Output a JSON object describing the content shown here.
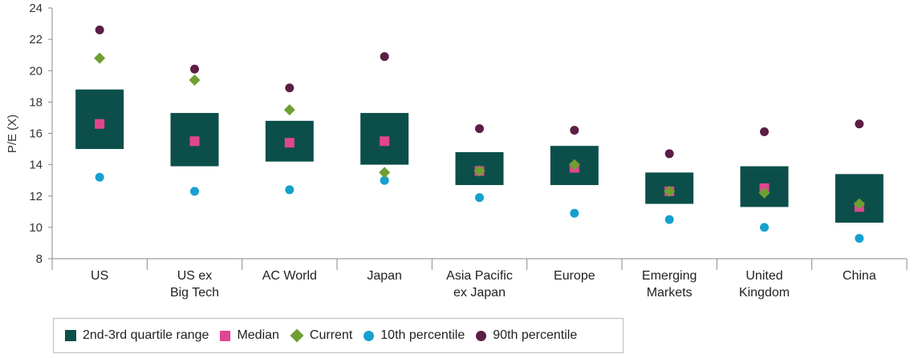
{
  "chart_data": {
    "type": "box",
    "title": "",
    "xlabel": "",
    "ylabel": "P/E (X)",
    "ylim": [
      8,
      24
    ],
    "yticks": [
      "8",
      "10",
      "12",
      "14",
      "16",
      "18",
      "20",
      "22",
      "24"
    ],
    "categories": [
      [
        "US"
      ],
      [
        "US ex",
        "Big Tech"
      ],
      [
        "AC World"
      ],
      [
        "Japan"
      ],
      [
        "Asia Pacific",
        "ex Japan"
      ],
      [
        "Europe"
      ],
      [
        "Emerging",
        "Markets"
      ],
      [
        "United",
        "Kingdom"
      ],
      [
        "China"
      ]
    ],
    "series": [
      {
        "name": "2nd-3rd quartile range",
        "key": "quartile",
        "color": "#0c4f4a",
        "low": [
          15.0,
          13.9,
          14.2,
          14.0,
          12.7,
          12.7,
          11.5,
          11.3,
          10.3
        ],
        "high": [
          18.8,
          17.3,
          16.8,
          17.3,
          14.8,
          15.2,
          13.5,
          13.9,
          13.4
        ]
      },
      {
        "name": "Median",
        "key": "median",
        "color": "#e2458f",
        "values": [
          16.6,
          15.5,
          15.4,
          15.5,
          13.6,
          13.8,
          12.3,
          12.5,
          11.3
        ]
      },
      {
        "name": "Current",
        "key": "current",
        "color": "#6f9f31",
        "values": [
          20.8,
          19.4,
          17.5,
          13.5,
          13.6,
          14.0,
          12.3,
          12.2,
          11.5
        ]
      },
      {
        "name": "10th percentile",
        "key": "p10",
        "color": "#16a0cf",
        "values": [
          13.2,
          12.3,
          12.4,
          13.0,
          11.9,
          10.9,
          10.5,
          10.0,
          9.3
        ]
      },
      {
        "name": "90th percentile",
        "key": "p90",
        "color": "#5b1e45",
        "values": [
          22.6,
          20.1,
          18.9,
          20.9,
          16.3,
          16.2,
          14.7,
          16.1,
          16.6
        ]
      }
    ],
    "grid": false,
    "legend_position": "bottom-left"
  },
  "legend": {
    "quartile": "2nd-3rd quartile range",
    "median": "Median",
    "current": "Current",
    "p10": "10th percentile",
    "p90": "90th percentile"
  }
}
